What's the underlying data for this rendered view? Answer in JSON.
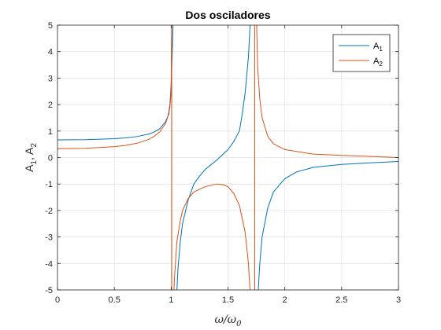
{
  "chart_data": {
    "type": "line",
    "title": "Dos osciladores",
    "xlabel_main": "ω/ω",
    "xlabel_sub": "0",
    "ylabel_parts": [
      {
        "text": "A",
        "sub": false
      },
      {
        "text": "1",
        "sub": true
      },
      {
        "text": ", A",
        "sub": false
      },
      {
        "text": "2",
        "sub": true
      }
    ],
    "xlim": [
      0,
      3
    ],
    "ylim": [
      -5,
      5
    ],
    "xticks": [
      0,
      0.5,
      1,
      1.5,
      2,
      2.5,
      3
    ],
    "xtick_labels": [
      "0",
      "0.5",
      "1",
      "1.5",
      "2",
      "2.5",
      "3"
    ],
    "yticks": [
      -5,
      -4,
      -3,
      -2,
      -1,
      0,
      1,
      2,
      3,
      4,
      5
    ],
    "ytick_labels": [
      "-5",
      "-4",
      "-3",
      "-2",
      "-1",
      "0",
      "1",
      "2",
      "3",
      "4",
      "5"
    ],
    "grid": true,
    "legend_position": "top-right",
    "series": [
      {
        "label_base": "A",
        "label_sub": "1",
        "color": "#0072BD",
        "segments": [
          [
            [
              0,
              0.667
            ],
            [
              0.25,
              0.677
            ],
            [
              0.5,
              0.711
            ],
            [
              0.6,
              0.741
            ],
            [
              0.7,
              0.792
            ],
            [
              0.8,
              0.884
            ],
            [
              0.85,
              0.963
            ],
            [
              0.9,
              1.09
            ],
            [
              0.95,
              1.35
            ],
            [
              0.97,
              1.55
            ],
            [
              0.98,
              1.72
            ],
            [
              0.99,
              2.05
            ],
            [
              1.0,
              2.8
            ],
            [
              1.01,
              4.0
            ],
            [
              1.02,
              5.5
            ]
          ],
          [
            [
              1.045,
              -5.5
            ],
            [
              1.06,
              -4.2
            ],
            [
              1.08,
              -3.2
            ],
            [
              1.1,
              -2.5
            ],
            [
              1.15,
              -1.6
            ],
            [
              1.2,
              -1.0
            ],
            [
              1.25,
              -0.7
            ],
            [
              1.3,
              -0.45
            ],
            [
              1.4,
              -0.1
            ],
            [
              1.5,
              0.3
            ],
            [
              1.55,
              0.6
            ],
            [
              1.6,
              1.0
            ],
            [
              1.62,
              1.5
            ],
            [
              1.65,
              2.4
            ],
            [
              1.68,
              3.8
            ],
            [
              1.7,
              5.5
            ]
          ],
          [
            [
              1.76,
              -5.5
            ],
            [
              1.78,
              -4.0
            ],
            [
              1.8,
              -3.0
            ],
            [
              1.85,
              -1.9
            ],
            [
              1.9,
              -1.3
            ],
            [
              2.0,
              -0.8
            ],
            [
              2.1,
              -0.55
            ],
            [
              2.25,
              -0.37
            ],
            [
              2.5,
              -0.26
            ],
            [
              2.75,
              -0.2
            ],
            [
              3.0,
              -0.15
            ]
          ]
        ]
      },
      {
        "label_base": "A",
        "label_sub": "2",
        "color": "#D95319",
        "segments": [
          [
            [
              0,
              0.333
            ],
            [
              0.25,
              0.35
            ],
            [
              0.5,
              0.41
            ],
            [
              0.6,
              0.46
            ],
            [
              0.7,
              0.54
            ],
            [
              0.8,
              0.68
            ],
            [
              0.85,
              0.8
            ],
            [
              0.9,
              0.97
            ],
            [
              0.95,
              1.28
            ],
            [
              0.98,
              1.65
            ],
            [
              0.99,
              1.95
            ],
            [
              1.0,
              2.5
            ],
            [
              1.005,
              5.5
            ]
          ],
          [
            [
              1.005,
              -5.5
            ],
            [
              1.0,
              -5.5
            ]
          ],
          [
            [
              1.005,
              5.5
            ],
            [
              1.005,
              -5.5
            ]
          ],
          [
            [
              1.02,
              -5.5
            ],
            [
              1.03,
              -4.5
            ],
            [
              1.05,
              -3.2
            ],
            [
              1.08,
              -2.4
            ],
            [
              1.1,
              -2.0
            ],
            [
              1.15,
              -1.55
            ],
            [
              1.2,
              -1.3
            ],
            [
              1.3,
              -1.1
            ],
            [
              1.4,
              -1.0
            ],
            [
              1.45,
              -1.02
            ],
            [
              1.5,
              -1.1
            ],
            [
              1.55,
              -1.35
            ],
            [
              1.6,
              -1.8
            ],
            [
              1.65,
              -2.8
            ],
            [
              1.68,
              -4.0
            ],
            [
              1.7,
              -5.5
            ]
          ],
          [
            [
              1.735,
              5.5
            ],
            [
              1.735,
              -5.5
            ]
          ],
          [
            [
              1.75,
              5.5
            ],
            [
              1.76,
              3.5
            ],
            [
              1.78,
              2.2
            ],
            [
              1.8,
              1.5
            ],
            [
              1.85,
              0.8
            ],
            [
              1.9,
              0.52
            ],
            [
              2.0,
              0.3
            ],
            [
              2.25,
              0.13
            ],
            [
              2.5,
              0.08
            ],
            [
              2.75,
              0.04
            ],
            [
              3.0,
              0.0
            ]
          ]
        ]
      }
    ]
  }
}
